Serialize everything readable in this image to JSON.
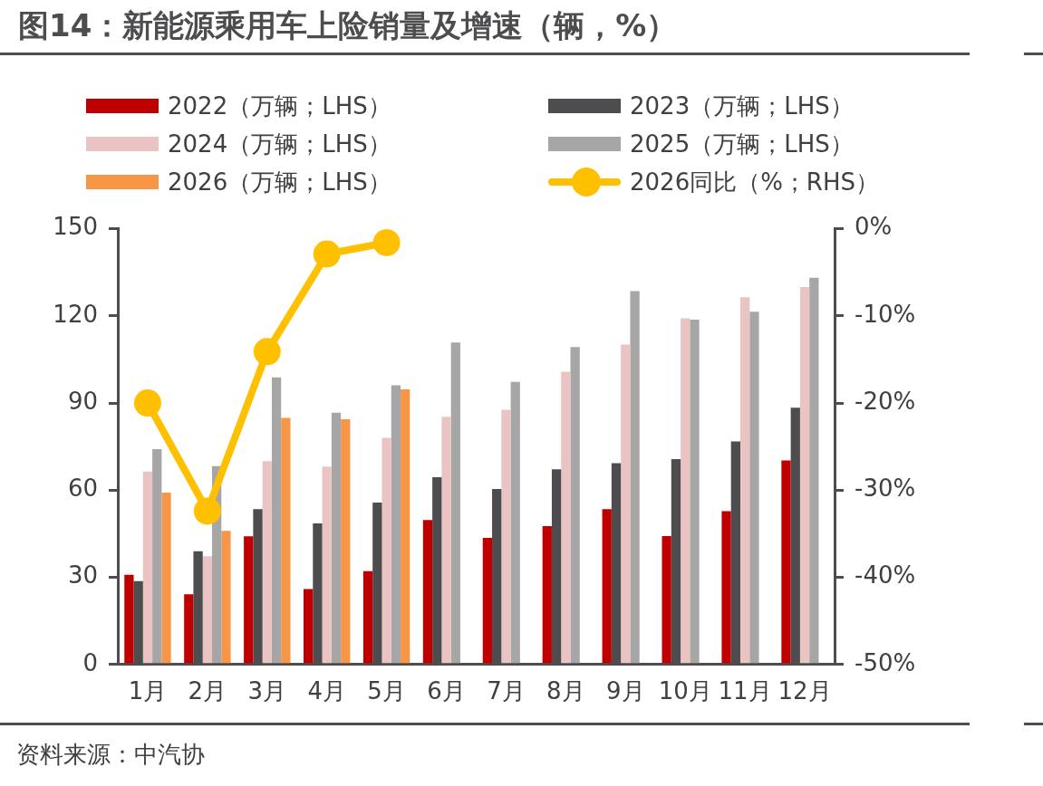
{
  "chart_data": {
    "type": "bar",
    "title": "图14：新能源乘用车上险销量及增速（辆，%）",
    "categories": [
      "1月",
      "2月",
      "3月",
      "4月",
      "5月",
      "6月",
      "7月",
      "8月",
      "9月",
      "10月",
      "11月",
      "12月"
    ],
    "series": [
      {
        "name": "2022（万辆；LHS）",
        "color": "#c00000",
        "values": [
          30.9,
          24.2,
          44.1,
          26.0,
          32.1,
          49.7,
          43.6,
          47.6,
          53.5,
          44.2,
          52.8,
          70.2
        ]
      },
      {
        "name": "2023（万辆；LHS）",
        "color": "#4d4d4f",
        "values": [
          28.7,
          39.0,
          53.5,
          48.6,
          55.7,
          64.5,
          60.4,
          67.2,
          69.3,
          70.7,
          76.8,
          88.4
        ]
      },
      {
        "name": "2024（万辆；LHS）",
        "color": "#eac3c3",
        "values": [
          66.4,
          37.3,
          70.0,
          68.1,
          78.0,
          85.3,
          87.7,
          100.8,
          110.1,
          119.2,
          126.4,
          129.9
        ]
      },
      {
        "name": "2025（万辆；LHS）",
        "color": "#a6a6a6",
        "values": [
          74.1,
          68.3,
          98.8,
          86.7,
          96.1,
          110.8,
          97.3,
          109.3,
          128.5,
          118.7,
          121.4,
          133.1
        ]
      },
      {
        "name": "2026（万辆；LHS）",
        "color": "#f79646",
        "values": [
          59.2,
          46.0,
          84.9,
          84.4,
          94.7,
          null,
          null,
          null,
          null,
          null,
          null,
          null
        ]
      },
      {
        "name": "2026同比（%；RHS）",
        "type": "line",
        "axis": "y2",
        "marker": "circle",
        "color": "#ffc000",
        "values": [
          -20.0,
          -32.4,
          -14.1,
          -2.9,
          -1.6,
          null,
          null,
          null,
          null,
          null,
          null,
          null
        ]
      }
    ],
    "ylim": [
      0,
      150
    ],
    "yticks": [
      0,
      30,
      60,
      90,
      120,
      150
    ],
    "y2lim": [
      -50,
      0
    ],
    "y2ticks": [
      {
        "value": -50,
        "label": "-50%"
      },
      {
        "value": -40,
        "label": "-40%"
      },
      {
        "value": -30,
        "label": "-30%"
      },
      {
        "value": -20,
        "label": "-20%"
      },
      {
        "value": -10,
        "label": "-10%"
      },
      {
        "value": 0,
        "label": "0%"
      }
    ],
    "grid": false,
    "legend": "top",
    "annotations": [
      "资料来源：中汽协"
    ]
  }
}
